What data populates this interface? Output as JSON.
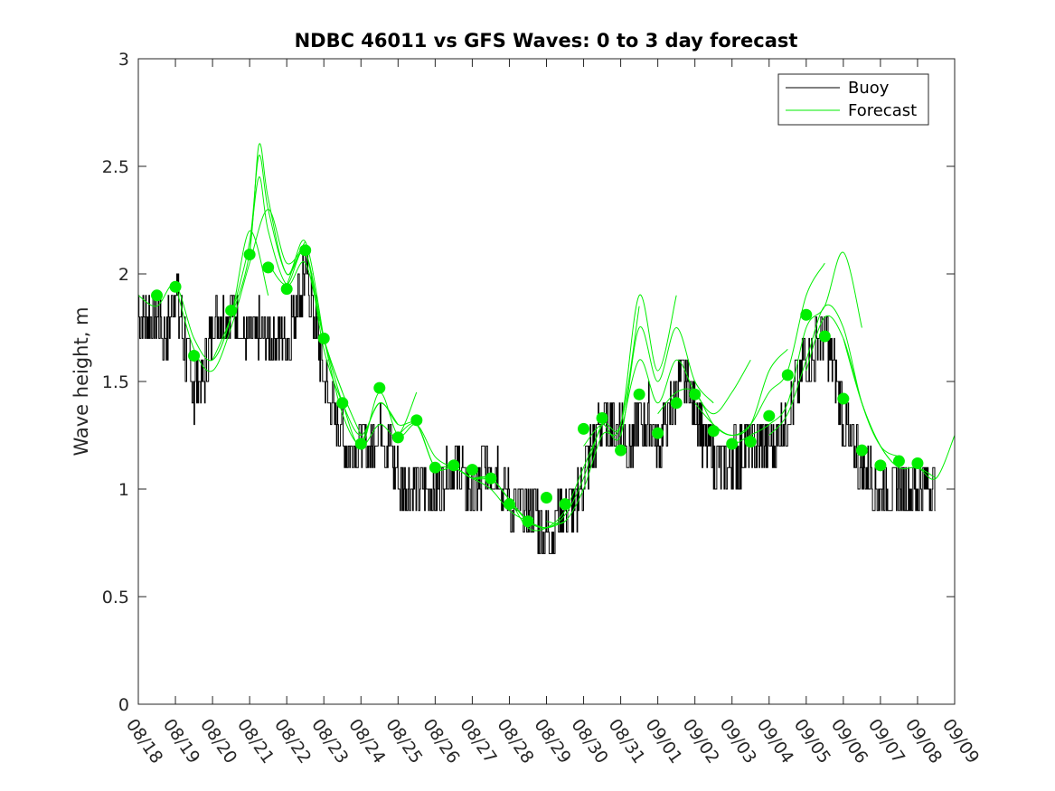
{
  "chart_data": {
    "type": "line",
    "title": "NDBC 46011 vs GFS Waves: 0 to 3 day forecast",
    "xlabel": "",
    "ylabel": "Wave height, m",
    "xlim": [
      0,
      22
    ],
    "ylim": [
      0,
      3
    ],
    "x_tick_labels": [
      "08/18",
      "08/19",
      "08/20",
      "08/21",
      "08/22",
      "08/23",
      "08/24",
      "08/25",
      "08/26",
      "08/27",
      "08/28",
      "08/29",
      "08/30",
      "08/31",
      "09/01",
      "09/02",
      "09/03",
      "09/04",
      "09/05",
      "09/06",
      "09/07",
      "09/08",
      "09/09"
    ],
    "y_ticks": [
      0,
      0.5,
      1,
      1.5,
      2,
      2.5,
      3
    ],
    "y_tick_labels": [
      "0",
      "0.5",
      "1",
      "1.5",
      "2",
      "2.5",
      "3"
    ],
    "legend": {
      "position": "top-right",
      "entries": [
        "Buoy",
        "Forecast"
      ]
    },
    "colors": {
      "buoy": "#000000",
      "forecast": "#00ee00",
      "axis": "#262626"
    },
    "series": [
      {
        "name": "Buoy",
        "color": "#000000",
        "x": [
          0,
          0.25,
          0.5,
          0.75,
          1,
          1.25,
          1.5,
          1.75,
          2,
          2.25,
          2.5,
          2.75,
          3,
          3.25,
          3.5,
          3.75,
          4,
          4.25,
          4.5,
          4.75,
          5,
          5.25,
          5.5,
          5.75,
          6,
          6.25,
          6.5,
          6.75,
          7,
          7.25,
          7.5,
          7.75,
          8,
          8.25,
          8.5,
          8.75,
          9,
          9.25,
          9.5,
          9.75,
          10,
          10.25,
          10.5,
          10.75,
          11,
          11.25,
          11.5,
          11.75,
          12,
          12.25,
          12.5,
          12.75,
          13,
          13.25,
          13.5,
          13.75,
          14,
          14.25,
          14.5,
          14.75,
          15,
          15.25,
          15.5,
          15.75,
          16,
          16.25,
          16.5,
          16.75,
          17,
          17.25,
          17.5,
          17.75,
          18,
          18.25,
          18.5,
          18.75,
          19,
          19.25,
          19.5,
          19.75,
          20,
          20.25,
          20.5,
          20.75,
          21,
          21.25,
          21.5
        ],
        "values": [
          1.85,
          1.75,
          1.8,
          1.7,
          1.95,
          1.65,
          1.45,
          1.5,
          1.75,
          1.8,
          1.85,
          1.75,
          1.7,
          1.75,
          1.65,
          1.75,
          1.65,
          1.85,
          2.0,
          1.8,
          1.5,
          1.35,
          1.25,
          1.2,
          1.25,
          1.2,
          1.3,
          1.2,
          1.05,
          1.0,
          0.95,
          0.95,
          1.0,
          1.05,
          1.1,
          1.05,
          1.0,
          1.05,
          1.1,
          1.05,
          0.95,
          0.9,
          0.85,
          0.85,
          0.83,
          0.85,
          0.85,
          0.9,
          1.05,
          1.2,
          1.3,
          1.35,
          1.3,
          1.2,
          1.3,
          1.35,
          1.2,
          1.3,
          1.45,
          1.5,
          1.4,
          1.2,
          1.15,
          1.1,
          1.15,
          1.15,
          1.2,
          1.15,
          1.2,
          1.25,
          1.35,
          1.5,
          1.6,
          1.65,
          1.7,
          1.55,
          1.3,
          1.2,
          1.1,
          1.05,
          0.95,
          0.95,
          1.0,
          0.95,
          0.95,
          0.95,
          0.95
        ]
      },
      {
        "name": "Forecast",
        "color": "#00ee00",
        "runs": [
          {
            "x": [
              0,
              0.5,
              1,
              1.5,
              2,
              2.5,
              3,
              3.5
            ],
            "values": [
              1.9,
              1.85,
              1.95,
              1.7,
              1.6,
              1.8,
              2.2,
              1.9
            ]
          },
          {
            "x": [
              1,
              1.5,
              2,
              2.5,
              3,
              3.5,
              4,
              4.5
            ],
            "values": [
              1.95,
              1.65,
              1.55,
              1.75,
              2.05,
              2.3,
              2.05,
              2.15
            ]
          },
          {
            "x": [
              2,
              2.5,
              3,
              3.25,
              3.5,
              4,
              4.5,
              5
            ],
            "values": [
              1.6,
              1.8,
              2.1,
              2.6,
              2.35,
              2.0,
              2.15,
              1.7
            ]
          },
          {
            "x": [
              2.5,
              3,
              3.25,
              3.5,
              4,
              4.5,
              5,
              5.5
            ],
            "values": [
              1.8,
              2.15,
              2.55,
              2.3,
              2.0,
              2.1,
              1.7,
              1.45
            ]
          },
          {
            "x": [
              3,
              3.25,
              3.5,
              4,
              4.5,
              5,
              5.5,
              6
            ],
            "values": [
              2.1,
              2.45,
              2.2,
              1.95,
              2.05,
              1.7,
              1.45,
              1.25
            ]
          },
          {
            "x": [
              3.5,
              4,
              4.5,
              5,
              5.5,
              6,
              6.5,
              7
            ],
            "values": [
              2.05,
              1.95,
              2.1,
              1.65,
              1.4,
              1.25,
              1.4,
              1.3
            ]
          },
          {
            "x": [
              4,
              4.5,
              5,
              5.5,
              6,
              6.5,
              7,
              7.5
            ],
            "values": [
              1.95,
              2.1,
              1.7,
              1.35,
              1.2,
              1.3,
              1.25,
              1.45
            ]
          },
          {
            "x": [
              5,
              5.5,
              6,
              6.5,
              7,
              7.5,
              8,
              8.5
            ],
            "values": [
              1.7,
              1.4,
              1.2,
              1.45,
              1.25,
              1.3,
              1.15,
              1.1
            ]
          },
          {
            "x": [
              6,
              6.5,
              7,
              7.5,
              8,
              8.5,
              9,
              9.5
            ],
            "values": [
              1.2,
              1.4,
              1.3,
              1.3,
              1.1,
              1.1,
              1.05,
              1.05
            ]
          },
          {
            "x": [
              7,
              7.5,
              8,
              8.5,
              9,
              9.5,
              10,
              10.5
            ],
            "values": [
              1.25,
              1.3,
              1.1,
              1.1,
              1.05,
              1.05,
              0.95,
              0.85
            ]
          },
          {
            "x": [
              8,
              8.5,
              9,
              9.5,
              10,
              10.5,
              11,
              11.5
            ],
            "values": [
              1.1,
              1.1,
              1.05,
              1.0,
              0.9,
              0.85,
              0.82,
              0.85
            ]
          },
          {
            "x": [
              9,
              9.5,
              10,
              10.5,
              11,
              11.5,
              12,
              12.5
            ],
            "values": [
              1.05,
              1.05,
              0.95,
              0.82,
              0.82,
              0.9,
              1.1,
              1.3
            ]
          },
          {
            "x": [
              10,
              10.5,
              11,
              11.5,
              12,
              12.5,
              13,
              13.5
            ],
            "values": [
              0.95,
              0.85,
              0.82,
              0.88,
              1.05,
              1.3,
              1.3,
              1.85
            ]
          },
          {
            "x": [
              11,
              11.5,
              12,
              12.5,
              13,
              13.5,
              14,
              14.5
            ],
            "values": [
              0.85,
              0.85,
              1.0,
              1.25,
              1.3,
              1.9,
              1.55,
              1.9
            ]
          },
          {
            "x": [
              12,
              12.5,
              13,
              13.5,
              14,
              14.5,
              15,
              15.5
            ],
            "values": [
              1.2,
              1.3,
              1.25,
              1.75,
              1.5,
              1.75,
              1.5,
              1.4
            ]
          },
          {
            "x": [
              13,
              13.5,
              14,
              14.5,
              15,
              15.5,
              16,
              16.5
            ],
            "values": [
              1.25,
              1.6,
              1.4,
              1.6,
              1.45,
              1.35,
              1.45,
              1.6
            ]
          },
          {
            "x": [
              14,
              14.5,
              15,
              15.5,
              16,
              16.5,
              17,
              17.5
            ],
            "values": [
              1.35,
              1.45,
              1.45,
              1.3,
              1.25,
              1.3,
              1.55,
              1.65
            ]
          },
          {
            "x": [
              15,
              15.5,
              16,
              16.5,
              17,
              17.5,
              18,
              18.5
            ],
            "values": [
              1.4,
              1.3,
              1.25,
              1.3,
              1.45,
              1.55,
              1.9,
              2.05
            ]
          },
          {
            "x": [
              16,
              16.5,
              17,
              17.5,
              18,
              18.5,
              19,
              19.5
            ],
            "values": [
              1.2,
              1.25,
              1.3,
              1.4,
              1.75,
              1.85,
              2.1,
              1.75
            ]
          },
          {
            "x": [
              17,
              17.5,
              18,
              18.5,
              19,
              19.5,
              20,
              20.5
            ],
            "values": [
              1.25,
              1.35,
              1.6,
              1.85,
              1.75,
              1.4,
              1.2,
              1.15
            ]
          },
          {
            "x": [
              18,
              18.5,
              19,
              19.5,
              20,
              20.5,
              21,
              21.5
            ],
            "values": [
              1.55,
              1.8,
              1.7,
              1.4,
              1.2,
              1.1,
              1.1,
              1.05
            ]
          },
          {
            "x": [
              19,
              19.5,
              20,
              20.5,
              21,
              21.5,
              22
            ],
            "values": [
              1.7,
              1.4,
              1.2,
              1.1,
              1.1,
              1.05,
              1.25
            ]
          }
        ]
      }
    ],
    "forecast_points": {
      "x": [
        0.5,
        1,
        1.5,
        2.5,
        3,
        3.5,
        4,
        4.5,
        5,
        5.5,
        6,
        6.5,
        7,
        7.5,
        8,
        8.5,
        9,
        9.5,
        10,
        10.5,
        11,
        11.5,
        12,
        12.5,
        13,
        13.5,
        14,
        14.5,
        15,
        15.5,
        16,
        16.5,
        17,
        17.5,
        18,
        18.5,
        19,
        19.5,
        20,
        20.5,
        21
      ],
      "values": [
        1.9,
        1.94,
        1.62,
        1.83,
        2.09,
        2.03,
        1.93,
        2.11,
        1.7,
        1.4,
        1.21,
        1.47,
        1.24,
        1.32,
        1.1,
        1.11,
        1.09,
        1.05,
        0.93,
        0.85,
        0.96,
        0.93,
        1.28,
        1.33,
        1.18,
        1.44,
        1.26,
        1.4,
        1.44,
        1.27,
        1.21,
        1.22,
        1.34,
        1.53,
        1.81,
        1.71,
        1.42,
        1.18,
        1.11,
        1.13,
        1.12
      ]
    }
  }
}
